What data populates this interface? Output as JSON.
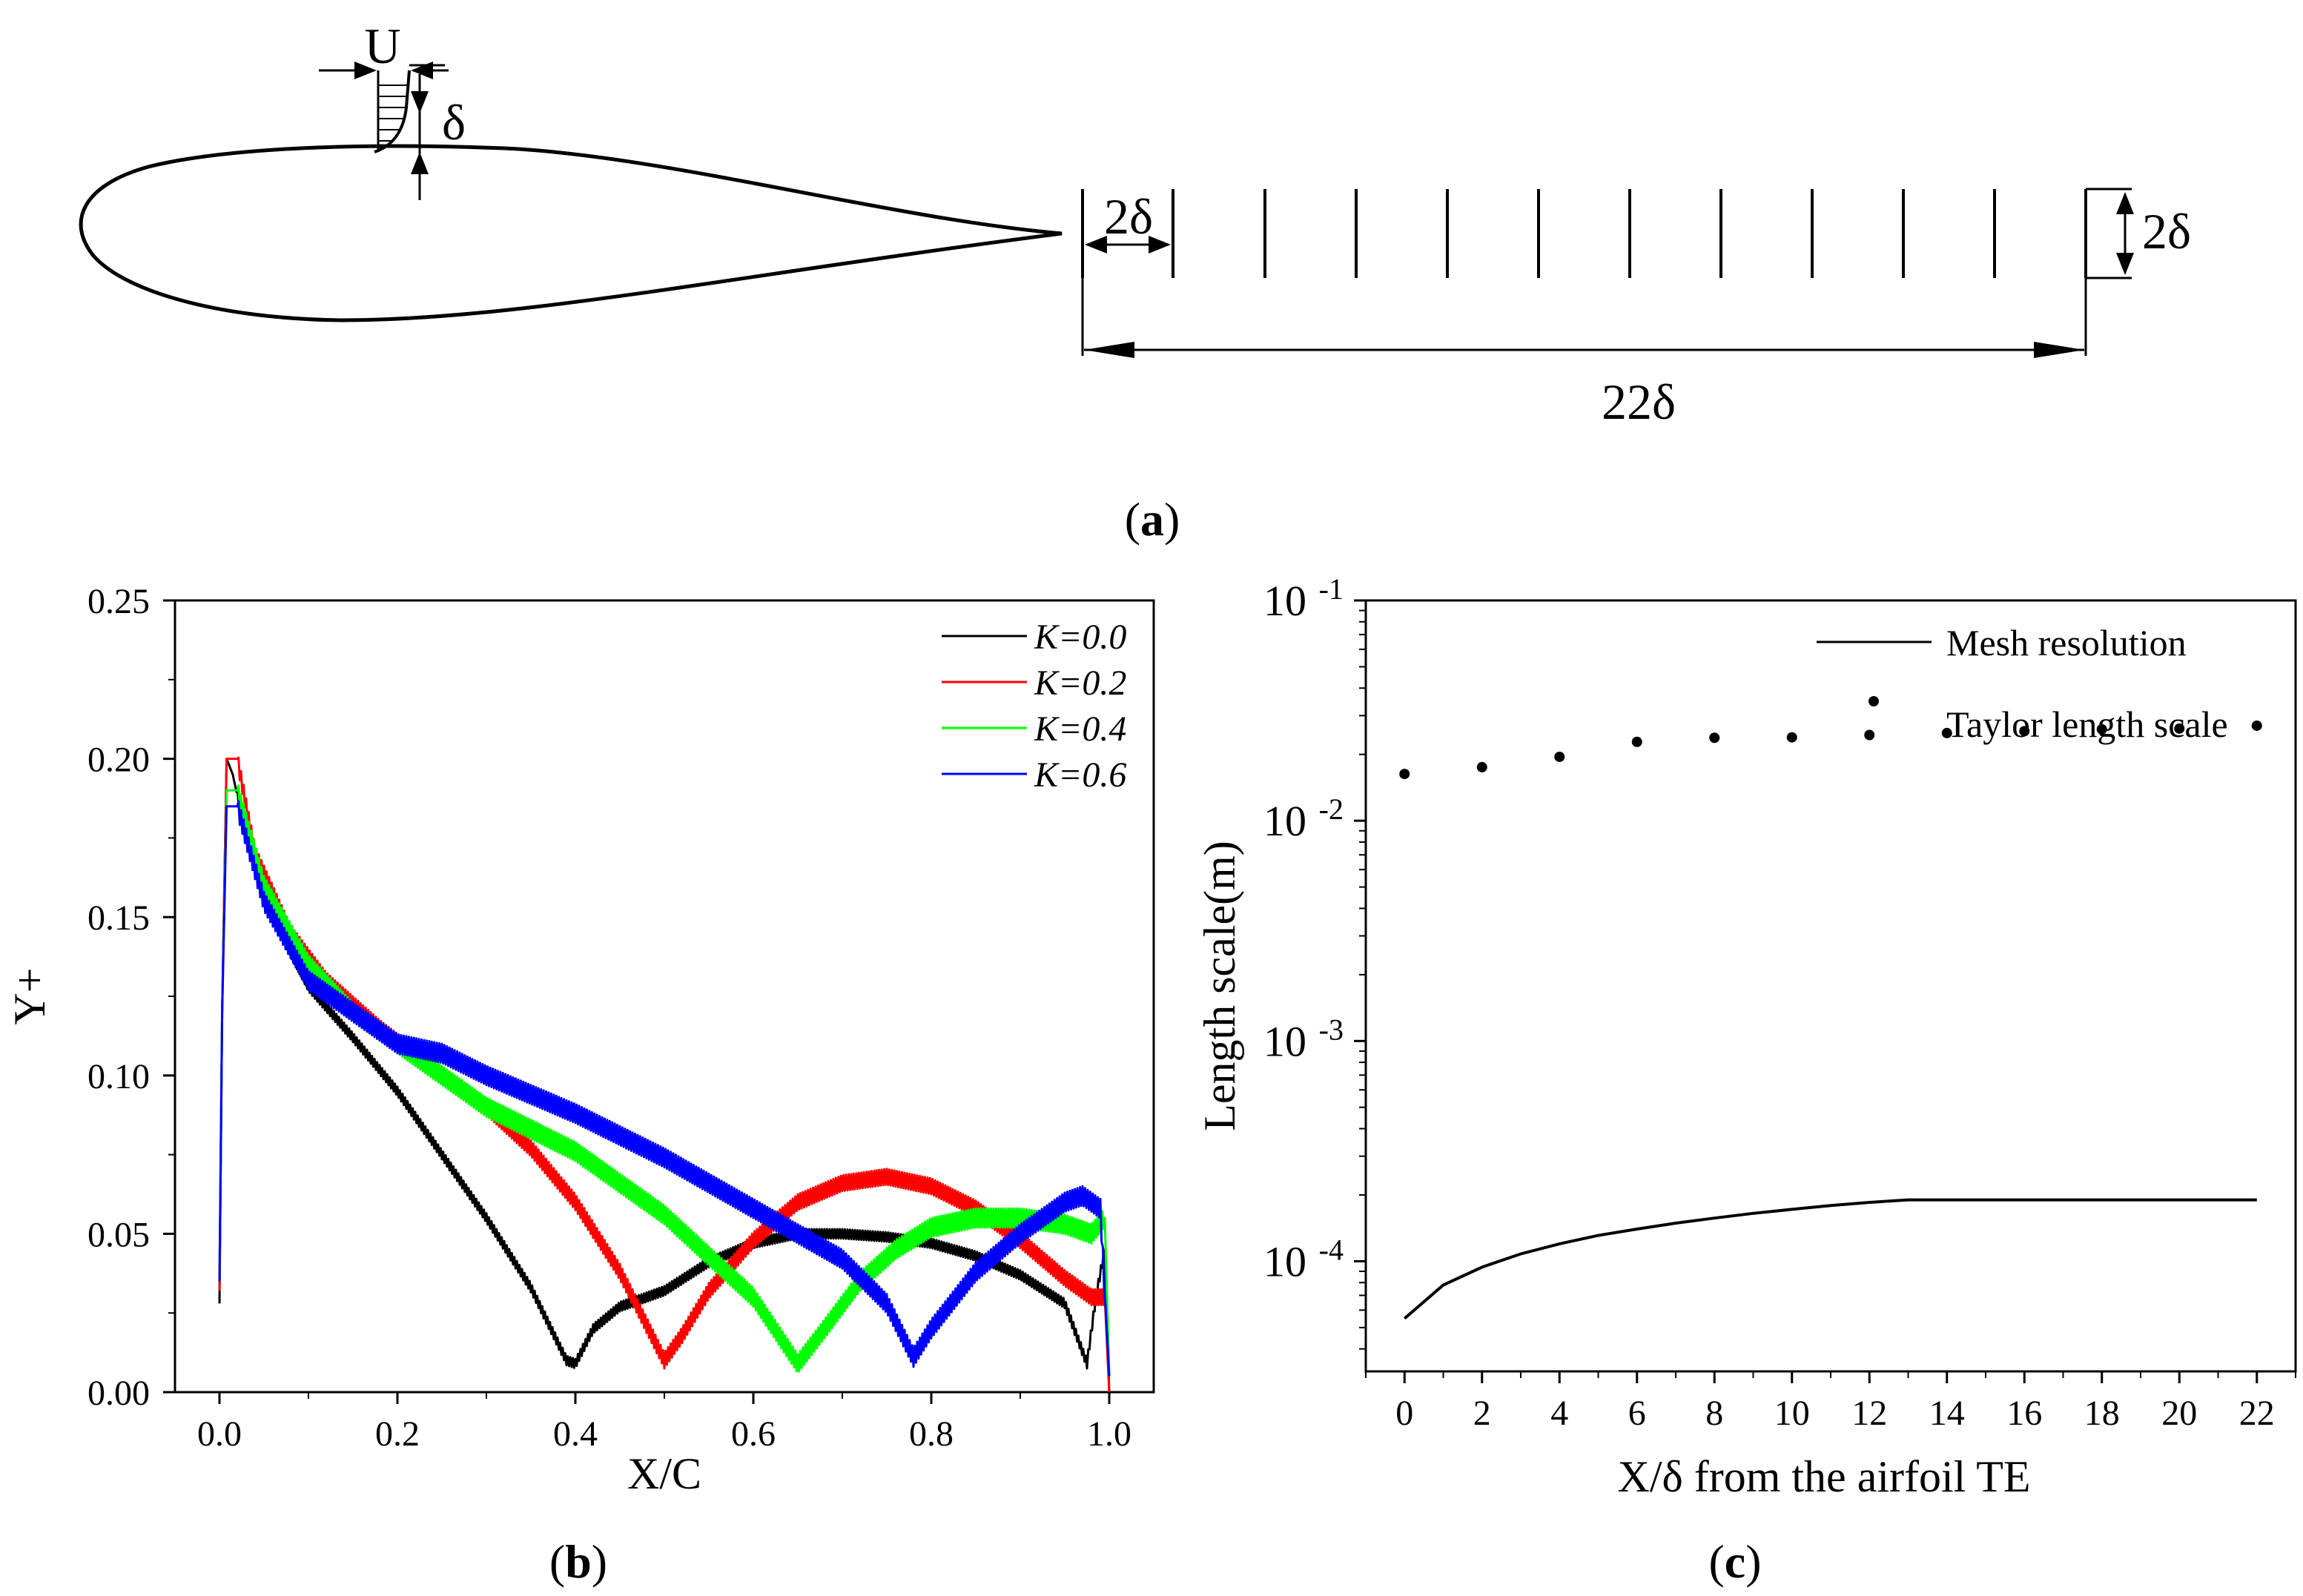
{
  "panel_a": {
    "caption_open": "(",
    "caption_letter": "a",
    "caption_close": ")",
    "velocity_label": "U",
    "bl_thickness_label": "δ",
    "probe_spacing_label": "2δ",
    "probe_height_label": "2δ",
    "total_length_label": "22δ"
  },
  "panel_b": {
    "caption_open": "(",
    "caption_letter": "b",
    "caption_close": ")"
  },
  "panel_c": {
    "caption_open": "(",
    "caption_letter": "c",
    "caption_close": ")"
  },
  "chart_data": [
    {
      "id": "b",
      "type": "line",
      "xlabel": "X/C",
      "ylabel": "Y+",
      "xlim": [
        -0.05,
        1.05
      ],
      "ylim": [
        0.0,
        0.25
      ],
      "xticks": [
        0.0,
        0.2,
        0.4,
        0.6,
        0.8,
        1.0
      ],
      "xtick_labels": [
        "0.0",
        "0.2",
        "0.4",
        "0.6",
        "0.8",
        "1.0"
      ],
      "yticks": [
        0.0,
        0.05,
        0.1,
        0.15,
        0.2,
        0.25
      ],
      "ytick_labels": [
        "0.00",
        "0.05",
        "0.10",
        "0.15",
        "0.20",
        "0.25"
      ],
      "legend_position": "top-right",
      "series": [
        {
          "name": "K=0.0",
          "color": "#000000",
          "noise": 0.0015,
          "points": [
            [
              0.0,
              0.028
            ],
            [
              0.003,
              0.12
            ],
            [
              0.008,
              0.2
            ],
            [
              0.015,
              0.195
            ],
            [
              0.03,
              0.175
            ],
            [
              0.06,
              0.15
            ],
            [
              0.1,
              0.128
            ],
            [
              0.15,
              0.112
            ],
            [
              0.2,
              0.095
            ],
            [
              0.25,
              0.075
            ],
            [
              0.3,
              0.055
            ],
            [
              0.35,
              0.033
            ],
            [
              0.39,
              0.01
            ],
            [
              0.4,
              0.009
            ],
            [
              0.42,
              0.02
            ],
            [
              0.45,
              0.027
            ],
            [
              0.5,
              0.032
            ],
            [
              0.55,
              0.041
            ],
            [
              0.6,
              0.047
            ],
            [
              0.65,
              0.05
            ],
            [
              0.7,
              0.05
            ],
            [
              0.75,
              0.049
            ],
            [
              0.8,
              0.047
            ],
            [
              0.85,
              0.043
            ],
            [
              0.9,
              0.037
            ],
            [
              0.95,
              0.028
            ],
            [
              0.975,
              0.009
            ],
            [
              0.985,
              0.03
            ],
            [
              0.995,
              0.045
            ],
            [
              1.0,
              0.0
            ]
          ]
        },
        {
          "name": "K=0.2",
          "color": "#ff0000",
          "noise": 0.0025,
          "points": [
            [
              0.0,
              0.032
            ],
            [
              0.003,
              0.12
            ],
            [
              0.008,
              0.2
            ],
            [
              0.02,
              0.2
            ],
            [
              0.04,
              0.17
            ],
            [
              0.08,
              0.145
            ],
            [
              0.12,
              0.13
            ],
            [
              0.18,
              0.115
            ],
            [
              0.25,
              0.1
            ],
            [
              0.3,
              0.09
            ],
            [
              0.35,
              0.077
            ],
            [
              0.4,
              0.06
            ],
            [
              0.45,
              0.038
            ],
            [
              0.5,
              0.01
            ],
            [
              0.52,
              0.018
            ],
            [
              0.55,
              0.032
            ],
            [
              0.6,
              0.048
            ],
            [
              0.65,
              0.06
            ],
            [
              0.7,
              0.066
            ],
            [
              0.75,
              0.068
            ],
            [
              0.8,
              0.065
            ],
            [
              0.85,
              0.058
            ],
            [
              0.9,
              0.048
            ],
            [
              0.95,
              0.036
            ],
            [
              0.98,
              0.03
            ],
            [
              0.995,
              0.03
            ],
            [
              1.0,
              0.0
            ]
          ]
        },
        {
          "name": "K=0.4",
          "color": "#00ff00",
          "noise": 0.003,
          "points": [
            [
              0.0,
              0.036
            ],
            [
              0.003,
              0.12
            ],
            [
              0.008,
              0.19
            ],
            [
              0.02,
              0.19
            ],
            [
              0.05,
              0.16
            ],
            [
              0.1,
              0.135
            ],
            [
              0.15,
              0.12
            ],
            [
              0.2,
              0.11
            ],
            [
              0.25,
              0.1
            ],
            [
              0.3,
              0.09
            ],
            [
              0.4,
              0.076
            ],
            [
              0.5,
              0.056
            ],
            [
              0.6,
              0.03
            ],
            [
              0.65,
              0.009
            ],
            [
              0.68,
              0.02
            ],
            [
              0.72,
              0.035
            ],
            [
              0.76,
              0.045
            ],
            [
              0.8,
              0.052
            ],
            [
              0.85,
              0.055
            ],
            [
              0.9,
              0.055
            ],
            [
              0.95,
              0.053
            ],
            [
              0.98,
              0.05
            ],
            [
              0.995,
              0.055
            ],
            [
              1.0,
              0.005
            ]
          ]
        },
        {
          "name": "K=0.6",
          "color": "#0000ff",
          "noise": 0.003,
          "points": [
            [
              0.0,
              0.035
            ],
            [
              0.003,
              0.12
            ],
            [
              0.008,
              0.185
            ],
            [
              0.02,
              0.185
            ],
            [
              0.05,
              0.155
            ],
            [
              0.1,
              0.13
            ],
            [
              0.15,
              0.12
            ],
            [
              0.2,
              0.11
            ],
            [
              0.25,
              0.107
            ],
            [
              0.3,
              0.1
            ],
            [
              0.35,
              0.094
            ],
            [
              0.4,
              0.088
            ],
            [
              0.5,
              0.074
            ],
            [
              0.6,
              0.058
            ],
            [
              0.7,
              0.042
            ],
            [
              0.75,
              0.028
            ],
            [
              0.78,
              0.011
            ],
            [
              0.8,
              0.02
            ],
            [
              0.85,
              0.038
            ],
            [
              0.9,
              0.05
            ],
            [
              0.95,
              0.06
            ],
            [
              0.97,
              0.062
            ],
            [
              0.99,
              0.058
            ],
            [
              1.0,
              0.005
            ]
          ]
        }
      ]
    },
    {
      "id": "c",
      "type": "line",
      "xlabel": "X/δ from the airfoil TE",
      "ylabel": "Length scale(m)",
      "xlim": [
        -1,
        23
      ],
      "ylim_log10": [
        -4.5,
        -1.0
      ],
      "xticks": [
        0,
        2,
        4,
        6,
        8,
        10,
        12,
        14,
        16,
        18,
        20,
        22
      ],
      "xtick_labels": [
        "0",
        "2",
        "4",
        "6",
        "8",
        "10",
        "12",
        "14",
        "16",
        "18",
        "20",
        "22"
      ],
      "ytick_exponents": [
        -4,
        -3,
        -2,
        -1
      ],
      "ytick_base": "10",
      "ytick_exponent_labels": [
        "-4",
        "-3",
        "-2",
        "-1"
      ],
      "legend_position": "top-right",
      "series": [
        {
          "name": "Mesh resolution",
          "style": "line",
          "color": "#000000",
          "x": [
            0,
            1,
            2,
            3,
            4,
            5,
            6,
            7,
            8,
            9,
            10,
            11,
            12,
            13,
            14,
            16,
            18,
            20,
            22
          ],
          "y": [
            5.5e-05,
            7.8e-05,
            9.4e-05,
            0.000108,
            0.00012,
            0.000131,
            0.00014,
            0.000149,
            0.000157,
            0.000165,
            0.000172,
            0.000179,
            0.000185,
            0.00019,
            0.00019,
            0.00019,
            0.00019,
            0.00019,
            0.00019
          ]
        },
        {
          "name": "Taylor length scale",
          "style": "dots",
          "color": "#000000",
          "x": [
            0,
            2,
            4,
            6,
            8,
            10,
            12,
            14,
            16,
            18,
            20,
            22
          ],
          "y": [
            0.0163,
            0.0175,
            0.0195,
            0.0228,
            0.0238,
            0.0239,
            0.0245,
            0.025,
            0.0255,
            0.026,
            0.0262,
            0.027
          ]
        }
      ]
    }
  ]
}
